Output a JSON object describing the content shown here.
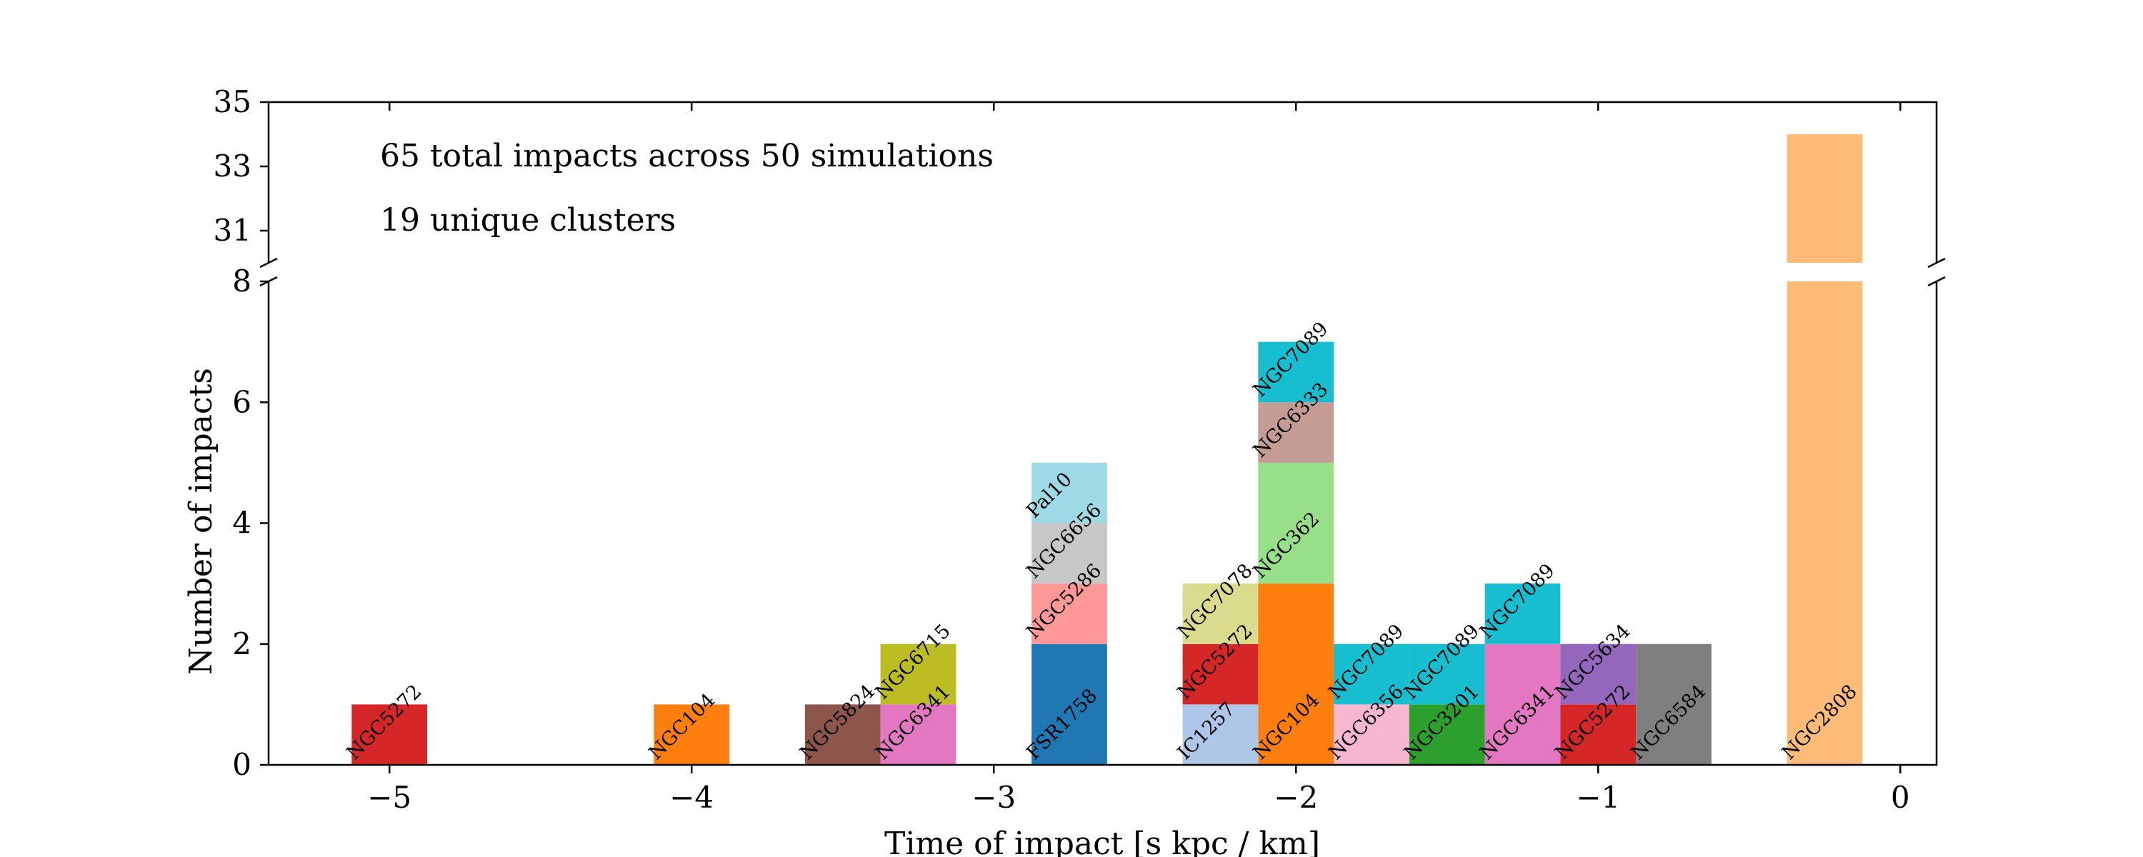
{
  "chart_data": {
    "type": "bar",
    "stacked": true,
    "broken_y_axis": true,
    "xlabel": "Time of impact [s kpc / km]",
    "ylabel": "Number of impacts",
    "xlim": [
      -5.4,
      0.12
    ],
    "x_ticks": [
      -5,
      -4,
      -3,
      -2,
      -1,
      0
    ],
    "x_tick_labels": [
      "−5",
      "−4",
      "−3",
      "−2",
      "−1",
      "0"
    ],
    "ylim_lower": [
      0,
      8
    ],
    "ylim_upper": [
      30,
      35
    ],
    "y_ticks_lower": [
      0,
      2,
      4,
      6,
      8
    ],
    "y_ticks_upper": [
      31,
      33,
      35
    ],
    "bin_width": 0.25,
    "annotations": [
      "65 total impacts across 50 simulations",
      "19 unique clusters"
    ],
    "bins": [
      {
        "x_start": -5.125,
        "segments": [
          {
            "cluster": "NGC5272",
            "count": 1,
            "color": "#d62728"
          }
        ]
      },
      {
        "x_start": -4.125,
        "segments": [
          {
            "cluster": "NGC104",
            "count": 1,
            "color": "#ff7f0e"
          }
        ]
      },
      {
        "x_start": -3.625,
        "segments": [
          {
            "cluster": "NGC5824",
            "count": 1,
            "color": "#8c564b"
          }
        ]
      },
      {
        "x_start": -3.375,
        "segments": [
          {
            "cluster": "NGC6341",
            "count": 1,
            "color": "#e377c2"
          },
          {
            "cluster": "NGC6715",
            "count": 1,
            "color": "#bcbd22"
          }
        ]
      },
      {
        "x_start": -2.875,
        "segments": [
          {
            "cluster": "FSR1758",
            "count": 2,
            "color": "#1f77b4"
          },
          {
            "cluster": "NGC5286",
            "count": 1,
            "color": "#ff9896"
          },
          {
            "cluster": "NGC6656",
            "count": 1,
            "color": "#c7c7c7"
          },
          {
            "cluster": "Pal10",
            "count": 1,
            "color": "#9edae5"
          }
        ]
      },
      {
        "x_start": -2.375,
        "segments": [
          {
            "cluster": "IC1257",
            "count": 1,
            "color": "#aec7e8"
          },
          {
            "cluster": "NGC5272",
            "count": 1,
            "color": "#d62728"
          },
          {
            "cluster": "NGC7078",
            "count": 1,
            "color": "#dbdb8d"
          }
        ]
      },
      {
        "x_start": -2.125,
        "segments": [
          {
            "cluster": "NGC104",
            "count": 3,
            "color": "#ff7f0e"
          },
          {
            "cluster": "NGC362",
            "count": 2,
            "color": "#98df8a"
          },
          {
            "cluster": "NGC6333",
            "count": 1,
            "color": "#c49c94"
          },
          {
            "cluster": "NGC7089",
            "count": 1,
            "color": "#17becf"
          }
        ]
      },
      {
        "x_start": -1.875,
        "segments": [
          {
            "cluster": "NGC6356",
            "count": 1,
            "color": "#f7b6d2"
          },
          {
            "cluster": "NGC7089",
            "count": 1,
            "color": "#17becf"
          }
        ]
      },
      {
        "x_start": -1.625,
        "segments": [
          {
            "cluster": "NGC3201",
            "count": 1,
            "color": "#2ca02c"
          },
          {
            "cluster": "NGC7089",
            "count": 1,
            "color": "#17becf"
          }
        ]
      },
      {
        "x_start": -1.375,
        "segments": [
          {
            "cluster": "NGC6341",
            "count": 2,
            "color": "#e377c2"
          },
          {
            "cluster": "NGC7089",
            "count": 1,
            "color": "#17becf"
          }
        ]
      },
      {
        "x_start": -1.125,
        "segments": [
          {
            "cluster": "NGC5272",
            "count": 1,
            "color": "#d62728"
          },
          {
            "cluster": "NGC5634",
            "count": 1,
            "color": "#9467bd"
          }
        ]
      },
      {
        "x_start": -0.875,
        "segments": [
          {
            "cluster": "NGC6584",
            "count": 2,
            "color": "#7f7f7f"
          }
        ]
      },
      {
        "x_start": -0.375,
        "segments": [
          {
            "cluster": "NGC2808",
            "count": 34,
            "color": "#ffbb78"
          }
        ]
      }
    ]
  }
}
